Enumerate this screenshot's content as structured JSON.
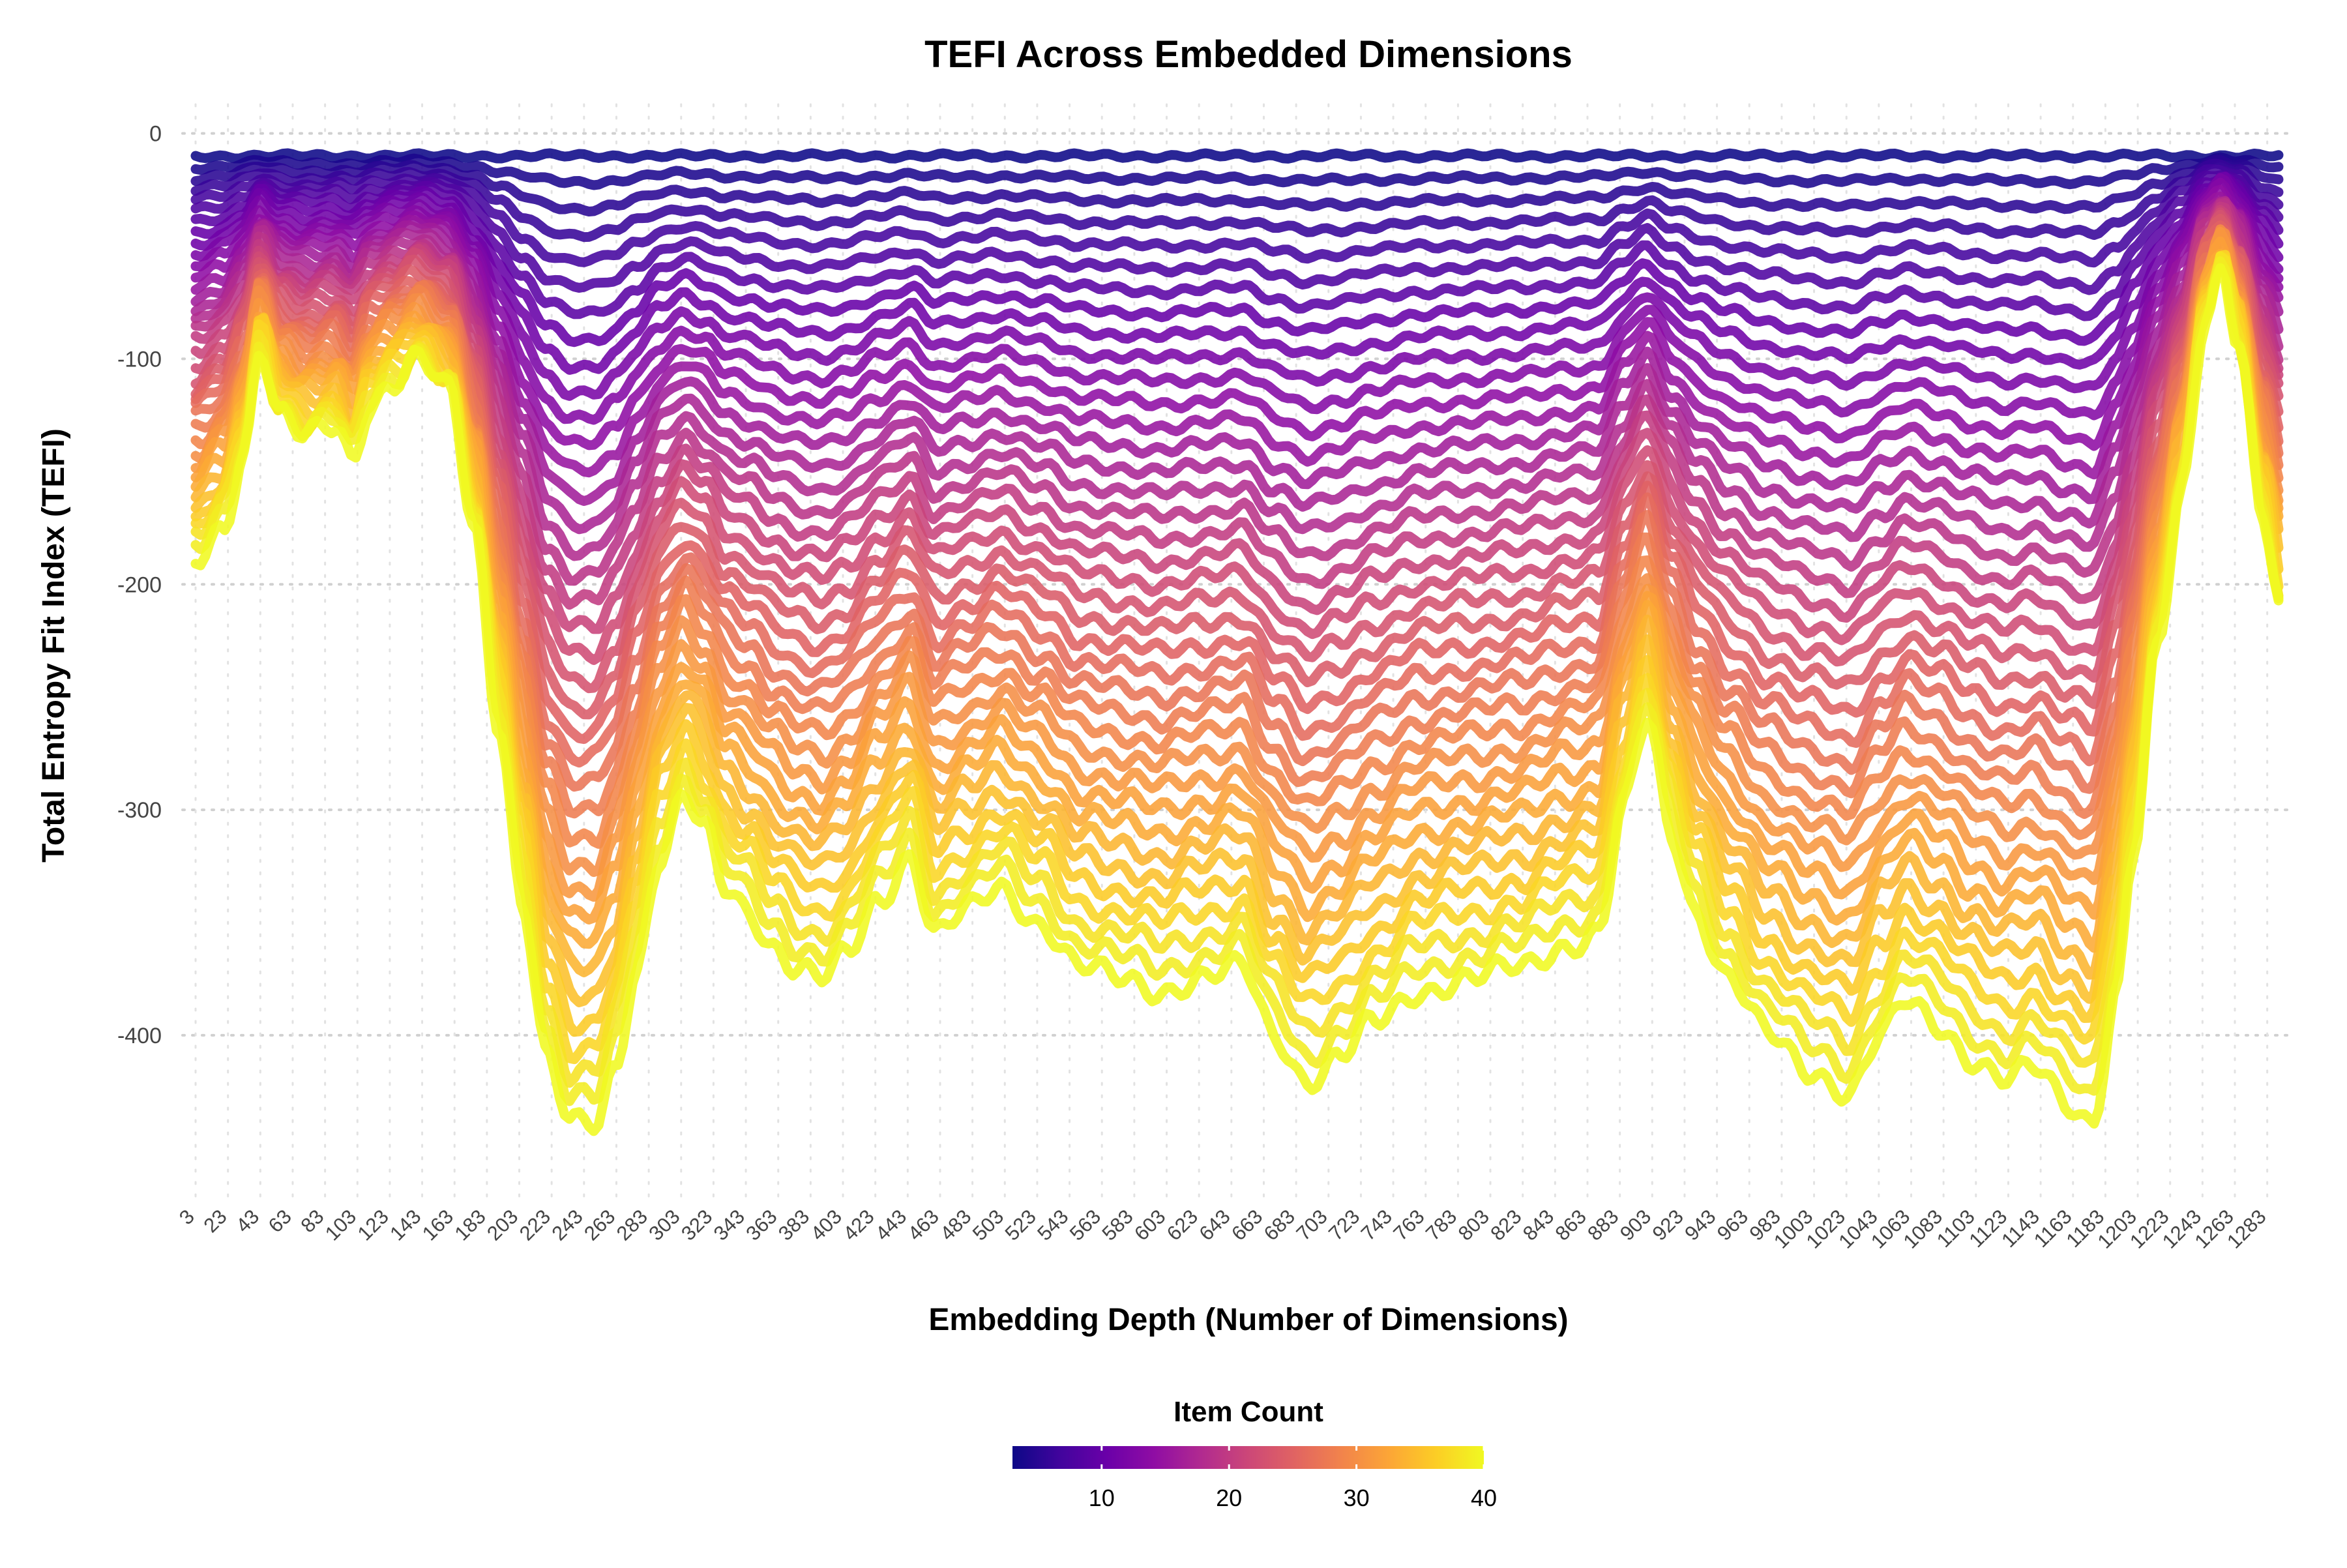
{
  "chart_data": {
    "type": "line",
    "title": "TEFI Across Embedded Dimensions",
    "xlabel": "Embedding Depth (Number of Dimensions)",
    "ylabel": "Total Entropy Fit Index (TEFI)",
    "x_tick_labels": [
      "3",
      "23",
      "43",
      "63",
      "83",
      "103",
      "123",
      "143",
      "163",
      "183",
      "203",
      "223",
      "243",
      "263",
      "283",
      "303",
      "323",
      "343",
      "363",
      "383",
      "403",
      "423",
      "443",
      "463",
      "483",
      "503",
      "523",
      "543",
      "563",
      "583",
      "603",
      "623",
      "643",
      "663",
      "683",
      "703",
      "723",
      "743",
      "763",
      "783",
      "803",
      "823",
      "843",
      "863",
      "883",
      "903",
      "923",
      "943",
      "963",
      "983",
      "1003",
      "1023",
      "1043",
      "1063",
      "1083",
      "1103",
      "1123",
      "1143",
      "1163",
      "1183",
      "1203",
      "1223",
      "1243",
      "1263",
      "1283"
    ],
    "x_range": [
      3,
      1292
    ],
    "y_ticks": [
      0,
      -100,
      -200,
      -300,
      -400
    ],
    "ylim": [
      -470,
      10
    ],
    "grid": "dotted",
    "legend": {
      "title": "Item Count",
      "position": "bottom",
      "ticks": [
        10,
        20,
        30,
        40
      ],
      "range": [
        3,
        40
      ],
      "colormap": "plasma"
    },
    "series_info": "One line per item count from 3 to 40; each series is the bottom envelope scaled by item-count fraction.",
    "item_counts": [
      3,
      4,
      5,
      6,
      7,
      8,
      9,
      10,
      11,
      12,
      13,
      14,
      15,
      16,
      17,
      18,
      19,
      20,
      21,
      22,
      23,
      24,
      25,
      26,
      27,
      28,
      29,
      30,
      31,
      32,
      33,
      34,
      35,
      36,
      37,
      38,
      39,
      40
    ],
    "offset_shallowest": -10,
    "envelope_item_count": 40,
    "envelope_x": [
      3,
      20,
      33,
      43,
      55,
      70,
      90,
      100,
      110,
      125,
      140,
      160,
      175,
      190,
      205,
      220,
      235,
      250,
      262,
      275,
      290,
      305,
      318,
      330,
      345,
      360,
      375,
      390,
      405,
      425,
      445,
      460,
      480,
      500,
      525,
      550,
      575,
      600,
      625,
      650,
      670,
      690,
      710,
      730,
      760,
      790,
      820,
      850,
      870,
      885,
      900,
      915,
      930,
      950,
      975,
      1000,
      1025,
      1045,
      1060,
      1080,
      1100,
      1120,
      1140,
      1160,
      1175,
      1190,
      1200,
      1215,
      1230,
      1245,
      1255,
      1265,
      1280,
      1292
    ],
    "envelope_y": [
      -190,
      -175,
      -140,
      -95,
      -125,
      -135,
      -130,
      -145,
      -120,
      -110,
      -100,
      -115,
      -175,
      -260,
      -340,
      -410,
      -440,
      -440,
      -415,
      -370,
      -320,
      -295,
      -310,
      -335,
      -345,
      -360,
      -370,
      -375,
      -365,
      -340,
      -320,
      -355,
      -345,
      -335,
      -350,
      -370,
      -375,
      -380,
      -375,
      -370,
      -400,
      -420,
      -410,
      -395,
      -380,
      -375,
      -370,
      -360,
      -355,
      -300,
      -260,
      -310,
      -345,
      -375,
      -400,
      -415,
      -425,
      -400,
      -385,
      -395,
      -410,
      -420,
      -415,
      -430,
      -438,
      -380,
      -320,
      -230,
      -160,
      -80,
      -60,
      -90,
      -170,
      -215
    ]
  }
}
